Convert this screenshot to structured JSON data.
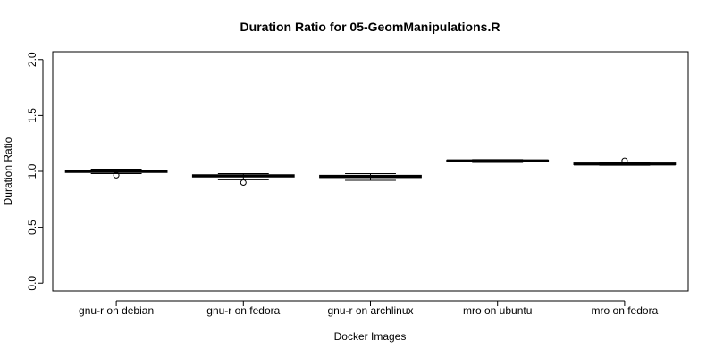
{
  "chart_data": {
    "type": "box",
    "title": "Duration Ratio for 05-GeomManipulations.R",
    "xlabel": "Docker Images",
    "ylabel": "Duration Ratio",
    "ylim": [
      -0.07,
      2.07
    ],
    "yticks": [
      "0.0",
      "0.5",
      "1.0",
      "1.5",
      "2.0"
    ],
    "grid": false,
    "categories": [
      "gnu-r on debian",
      "gnu-r on fedora",
      "gnu-r on archlinux",
      "mro on ubuntu",
      "mro on fedora"
    ],
    "boxes": [
      {
        "whisker_low": 0.98,
        "q1": 0.99,
        "median": 1.0,
        "q3": 1.01,
        "whisker_high": 1.02,
        "outliers": [
          0.965
        ]
      },
      {
        "whisker_low": 0.925,
        "q1": 0.95,
        "median": 0.96,
        "q3": 0.97,
        "whisker_high": 0.98,
        "outliers": [
          0.9
        ]
      },
      {
        "whisker_low": 0.92,
        "q1": 0.945,
        "median": 0.955,
        "q3": 0.965,
        "whisker_high": 0.98,
        "outliers": []
      },
      {
        "whisker_low": 1.08,
        "q1": 1.085,
        "median": 1.095,
        "q3": 1.1,
        "whisker_high": 1.105,
        "outliers": []
      },
      {
        "whisker_low": 1.055,
        "q1": 1.06,
        "median": 1.065,
        "q3": 1.075,
        "whisker_high": 1.08,
        "outliers": [
          1.095
        ]
      }
    ]
  }
}
